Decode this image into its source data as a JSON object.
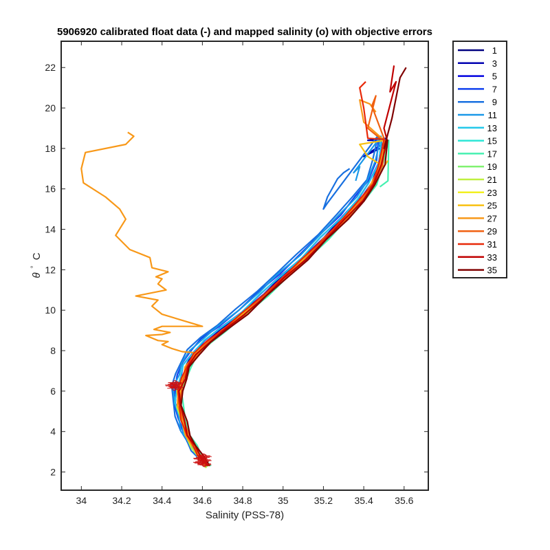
{
  "chart_data": {
    "type": "line",
    "title": "5906920 calibrated float data (-) and mapped salinity (o) with objective errors",
    "xlabel": "Salinity (PSS-78)",
    "ylabel_symbol": "θ",
    "ylabel_unit": "C",
    "xlim": [
      33.9,
      35.72
    ],
    "ylim": [
      1.1,
      23.3
    ],
    "xticks": [
      34,
      34.2,
      34.4,
      34.6,
      34.8,
      35,
      35.2,
      35.4,
      35.6
    ],
    "xtick_labels": [
      "34",
      "34.2",
      "34.4",
      "34.6",
      "34.8",
      "35",
      "35.2",
      "35.4",
      "35.6"
    ],
    "yticks": [
      2,
      4,
      6,
      8,
      10,
      12,
      14,
      16,
      18,
      20,
      22
    ],
    "ytick_labels": [
      "2",
      "4",
      "6",
      "8",
      "10",
      "12",
      "14",
      "16",
      "18",
      "20",
      "22"
    ],
    "legend_position": "outside-right-top",
    "grid": false,
    "base_curve": [
      [
        34.62,
        2.3
      ],
      [
        34.58,
        2.8
      ],
      [
        34.55,
        3.3
      ],
      [
        34.52,
        3.8
      ],
      [
        34.5,
        4.5
      ],
      [
        34.48,
        5.3
      ],
      [
        34.48,
        6.0
      ],
      [
        34.5,
        6.6
      ],
      [
        34.52,
        7.2
      ],
      [
        34.56,
        7.8
      ],
      [
        34.62,
        8.4
      ],
      [
        34.7,
        9.0
      ],
      [
        34.8,
        9.8
      ],
      [
        34.9,
        10.7
      ],
      [
        35.0,
        11.6
      ],
      [
        35.1,
        12.5
      ],
      [
        35.2,
        13.5
      ],
      [
        35.3,
        14.5
      ],
      [
        35.38,
        15.4
      ],
      [
        35.44,
        16.2
      ],
      [
        35.48,
        17.2
      ],
      [
        35.5,
        18.4
      ]
    ],
    "series": [
      {
        "name": "1",
        "color": "#000080",
        "ds": 0.01,
        "dt": 0.0
      },
      {
        "name": "3",
        "color": "#0000b0",
        "ds": 0.0,
        "dt": 0.1,
        "top": [
          [
            35.42,
            18.4
          ],
          [
            35.52,
            18.4
          ],
          [
            35.4,
            17.6
          ],
          [
            35.48,
            18.0
          ]
        ]
      },
      {
        "name": "5",
        "color": "#0000e0",
        "ds": -0.01,
        "dt": 0.1,
        "top": [
          [
            35.45,
            18.4
          ],
          [
            35.5,
            18.2
          ]
        ]
      },
      {
        "name": "7",
        "color": "#1040ee",
        "ds": -0.02,
        "dt": 0.2
      },
      {
        "name": "9",
        "color": "#1870e0",
        "ds": -0.03,
        "dt": 0.25,
        "top": [
          [
            35.22,
            15.3
          ],
          [
            35.2,
            15.0
          ],
          [
            35.22,
            15.6
          ],
          [
            35.27,
            16.5
          ],
          [
            35.3,
            16.8
          ],
          [
            35.33,
            17.0
          ]
        ]
      },
      {
        "name": "11",
        "color": "#1a98e8",
        "ds": -0.02,
        "dt": 0.2,
        "top": [
          [
            35.35,
            16.8
          ],
          [
            35.38,
            17.1
          ],
          [
            35.36,
            16.4
          ]
        ]
      },
      {
        "name": "13",
        "color": "#22c8ea",
        "ds": -0.01,
        "dt": 0.1
      },
      {
        "name": "15",
        "color": "#2ae6d6",
        "ds": 0.01,
        "dt": 0.05
      },
      {
        "name": "17",
        "color": "#44f0b0",
        "ds": 0.02,
        "dt": 0.0,
        "top": [
          [
            35.52,
            16.4
          ],
          [
            35.48,
            16.1
          ]
        ]
      },
      {
        "name": "19",
        "color": "#80f270",
        "ds": 0.01,
        "dt": -0.05
      },
      {
        "name": "21",
        "color": "#bff040",
        "ds": 0.0,
        "dt": -0.1
      },
      {
        "name": "23",
        "color": "#f2f020",
        "ds": 0.01,
        "dt": 0.0
      },
      {
        "name": "25",
        "color": "#f8c010",
        "ds": 0.0,
        "dt": 0.0,
        "top": [
          [
            35.38,
            18.2
          ],
          [
            35.42,
            17.6
          ],
          [
            35.5,
            17.1
          ],
          [
            35.52,
            17.4
          ]
        ]
      },
      {
        "name": "27",
        "color": "#f89818",
        "ds": 0.0,
        "dt": 0.0,
        "orange_profile": [
          [
            34.56,
            7.9
          ],
          [
            34.5,
            7.95
          ],
          [
            34.45,
            8.1
          ],
          [
            34.4,
            8.3
          ],
          [
            34.43,
            8.45
          ],
          [
            34.38,
            8.5
          ],
          [
            34.32,
            8.75
          ],
          [
            34.4,
            8.8
          ],
          [
            34.44,
            8.9
          ],
          [
            34.36,
            9.05
          ],
          [
            34.4,
            9.2
          ],
          [
            34.6,
            9.2
          ],
          [
            34.5,
            9.5
          ],
          [
            34.4,
            9.8
          ],
          [
            34.35,
            10.2
          ],
          [
            34.38,
            10.5
          ],
          [
            34.27,
            10.7
          ],
          [
            34.42,
            11.0
          ],
          [
            34.38,
            11.3
          ],
          [
            34.4,
            11.55
          ],
          [
            34.37,
            11.65
          ],
          [
            34.43,
            11.9
          ],
          [
            34.35,
            12.1
          ],
          [
            34.34,
            12.6
          ],
          [
            34.24,
            13.0
          ],
          [
            34.17,
            13.7
          ],
          [
            34.22,
            14.5
          ],
          [
            34.19,
            15.0
          ],
          [
            34.12,
            15.6
          ],
          [
            34.01,
            16.3
          ],
          [
            34.0,
            17.0
          ],
          [
            34.02,
            17.8
          ],
          [
            34.22,
            18.2
          ],
          [
            34.26,
            18.6
          ],
          [
            34.23,
            18.8
          ]
        ],
        "top": [
          [
            35.4,
            19.3
          ],
          [
            35.38,
            20.4
          ],
          [
            35.43,
            20.2
          ],
          [
            35.46,
            19.8
          ]
        ]
      },
      {
        "name": "29",
        "color": "#f06010",
        "ds": 0.01,
        "dt": 0.0,
        "top": [
          [
            35.44,
            20.1
          ],
          [
            35.46,
            20.6
          ],
          [
            35.42,
            19.0
          ],
          [
            35.48,
            18.5
          ]
        ]
      },
      {
        "name": "31",
        "color": "#e82808",
        "ds": 0.0,
        "dt": 0.05,
        "top": [
          [
            35.42,
            18.5
          ],
          [
            35.4,
            20.0
          ],
          [
            35.38,
            21.0
          ],
          [
            35.41,
            21.3
          ]
        ]
      },
      {
        "name": "33",
        "color": "#c00000",
        "ds": 0.01,
        "dt": 0.0,
        "top": [
          [
            35.5,
            19.0
          ],
          [
            35.56,
            21.3
          ],
          [
            35.53,
            20.8
          ],
          [
            35.55,
            22.1
          ]
        ]
      },
      {
        "name": "35",
        "color": "#800000",
        "ds": 0.02,
        "dt": 0.0,
        "top": [
          [
            35.5,
            18.0
          ],
          [
            35.54,
            19.5
          ],
          [
            35.58,
            21.5
          ],
          [
            35.61,
            22.0
          ]
        ]
      }
    ],
    "mapped_markers": {
      "color": "#cc1010",
      "clusters": [
        {
          "s": 34.46,
          "t": 6.3,
          "count": 8
        },
        {
          "s": 34.6,
          "t": 2.6,
          "count": 12
        }
      ]
    }
  }
}
